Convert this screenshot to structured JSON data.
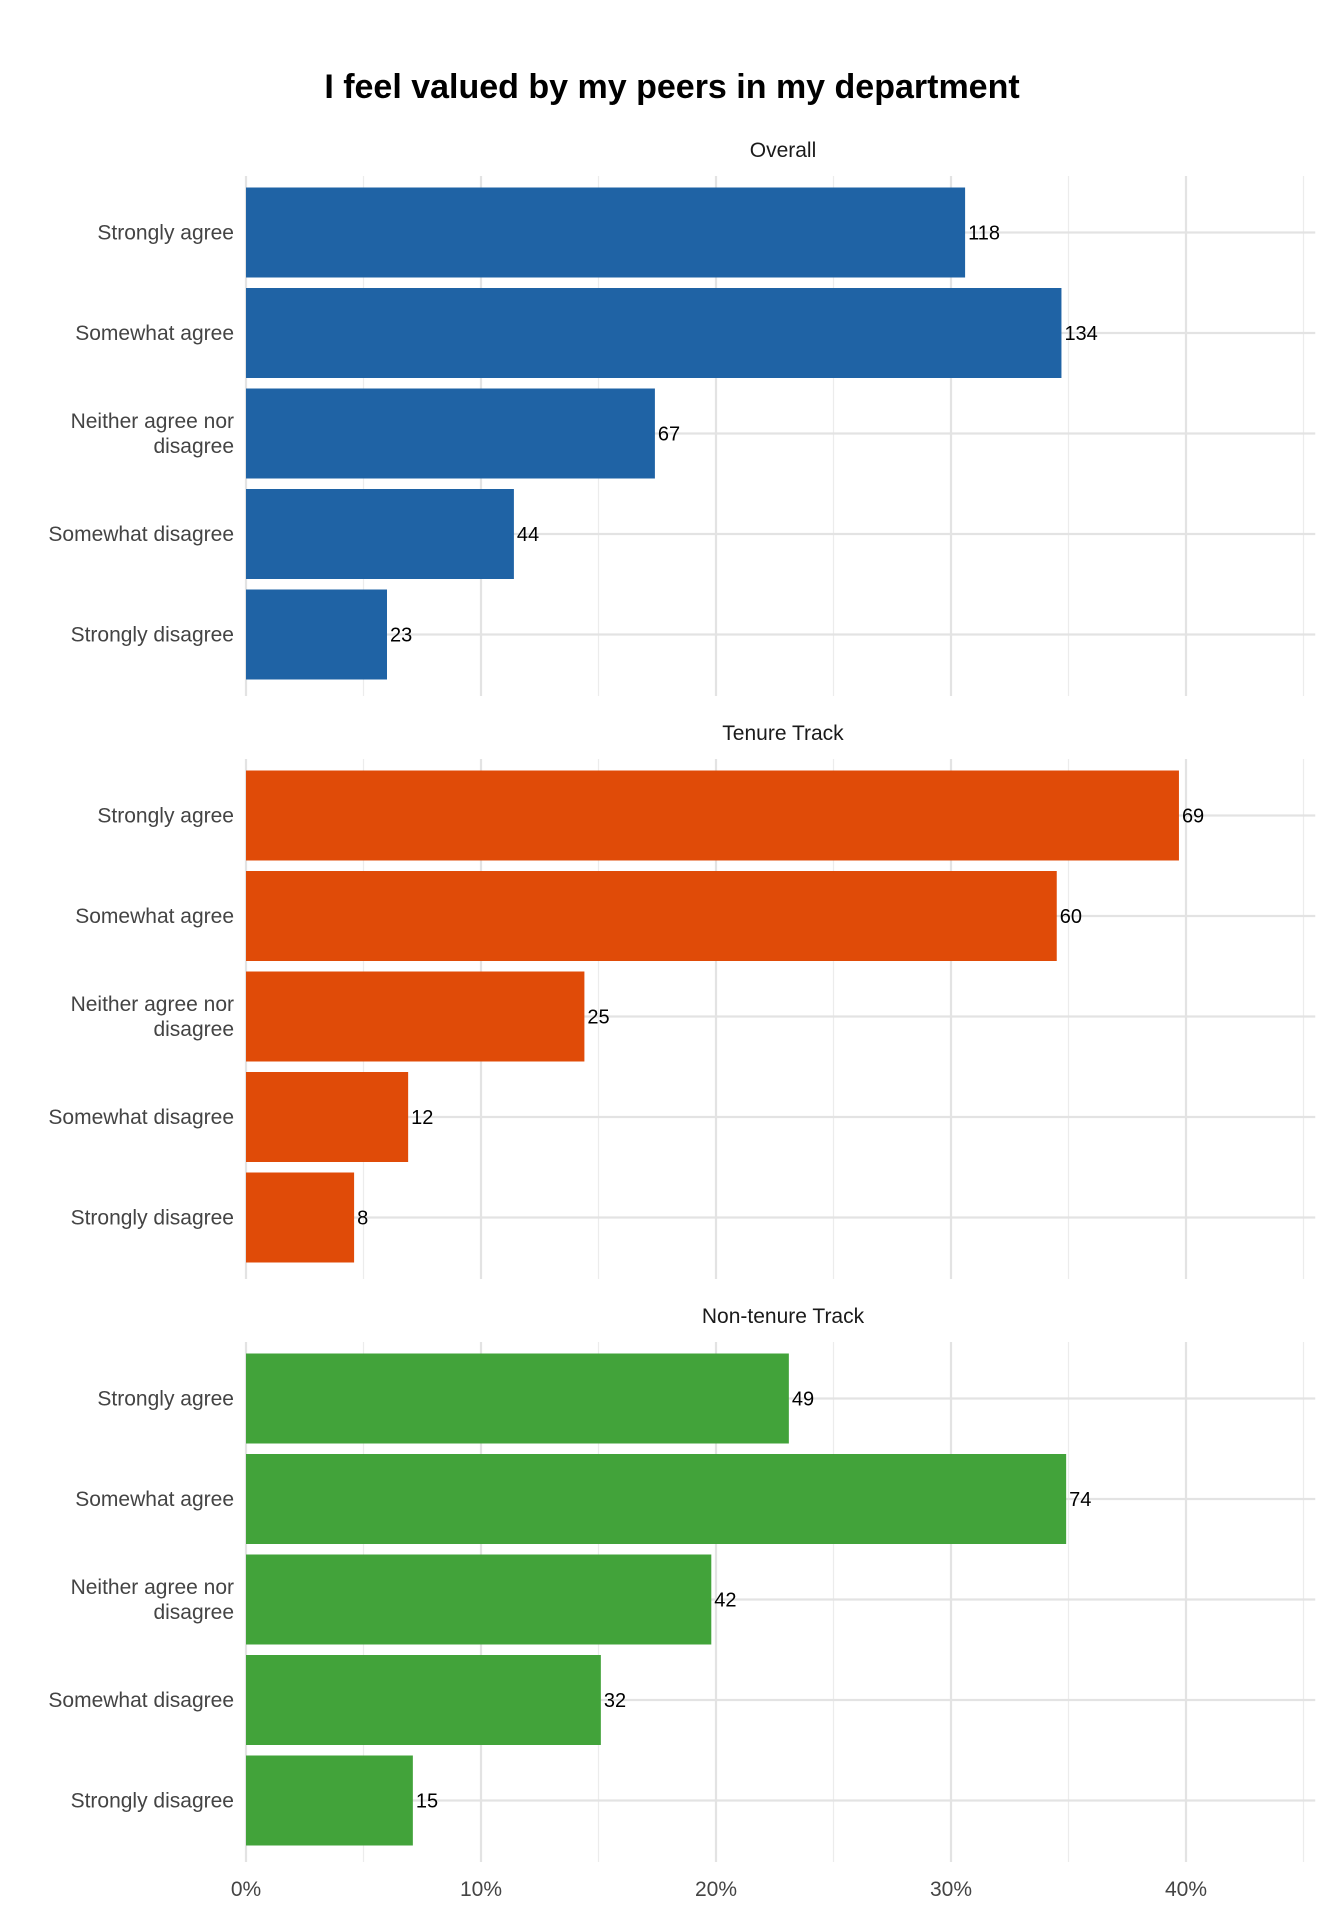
{
  "chart_data": {
    "type": "bar",
    "orientation": "horizontal",
    "title": "I feel valued by my peers in my department",
    "categories": [
      "Strongly agree",
      "Somewhat agree",
      "Neither agree nor disagree",
      "Somewhat disagree",
      "Strongly disagree"
    ],
    "category_lines": [
      [
        "Strongly agree"
      ],
      [
        "Somewhat agree"
      ],
      [
        "Neither agree nor",
        "disagree"
      ],
      [
        "Somewhat disagree"
      ],
      [
        "Strongly disagree"
      ]
    ],
    "xlim": [
      0,
      0.455
    ],
    "x_ticks": [
      0,
      0.1,
      0.2,
      0.3,
      0.4
    ],
    "x_tick_labels": [
      "0%",
      "10%",
      "20%",
      "30%",
      "40%"
    ],
    "grid": true,
    "panels": [
      {
        "title": "Overall",
        "color": "#1f63a5",
        "counts": [
          118,
          134,
          67,
          44,
          23
        ],
        "percent": [
          0.306,
          0.347,
          0.174,
          0.114,
          0.06
        ]
      },
      {
        "title": "Tenure Track",
        "color": "#e04b08",
        "counts": [
          69,
          60,
          25,
          12,
          8
        ],
        "percent": [
          0.397,
          0.345,
          0.144,
          0.069,
          0.046
        ]
      },
      {
        "title": "Non-tenure Track",
        "color": "#42a33a",
        "counts": [
          49,
          74,
          42,
          32,
          15
        ],
        "percent": [
          0.231,
          0.349,
          0.198,
          0.151,
          0.071
        ]
      }
    ]
  }
}
